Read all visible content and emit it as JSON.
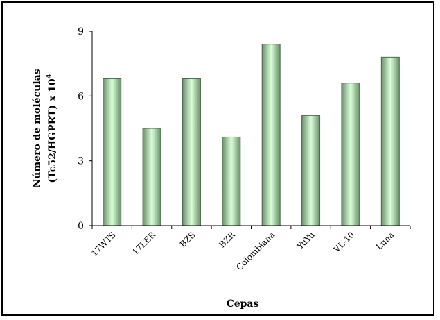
{
  "chart_data": {
    "type": "bar",
    "categories": [
      "17WTS",
      "17LER",
      "BZS",
      "BZR",
      "Colombiana",
      "YuYu",
      "VL-10",
      "Luna"
    ],
    "values": [
      6.8,
      4.5,
      6.8,
      4.1,
      8.4,
      5.1,
      6.6,
      7.8
    ],
    "title": "",
    "xlabel": "Cepas",
    "ylabel_line1": "Número de moléculas",
    "ylabel_line2": "(Tc52/HGPRT) x 10",
    "ylabel_superscript": "4",
    "ylim": [
      0,
      9
    ],
    "yticks": [
      "0",
      "3",
      "6",
      "9"
    ],
    "grid": false,
    "legend": "none",
    "colors": {
      "bar_edge": "#4a6a4a",
      "bar_dark": "#6b8f6b",
      "bar_light": "#d9ffd9",
      "axis": "#000000"
    }
  }
}
